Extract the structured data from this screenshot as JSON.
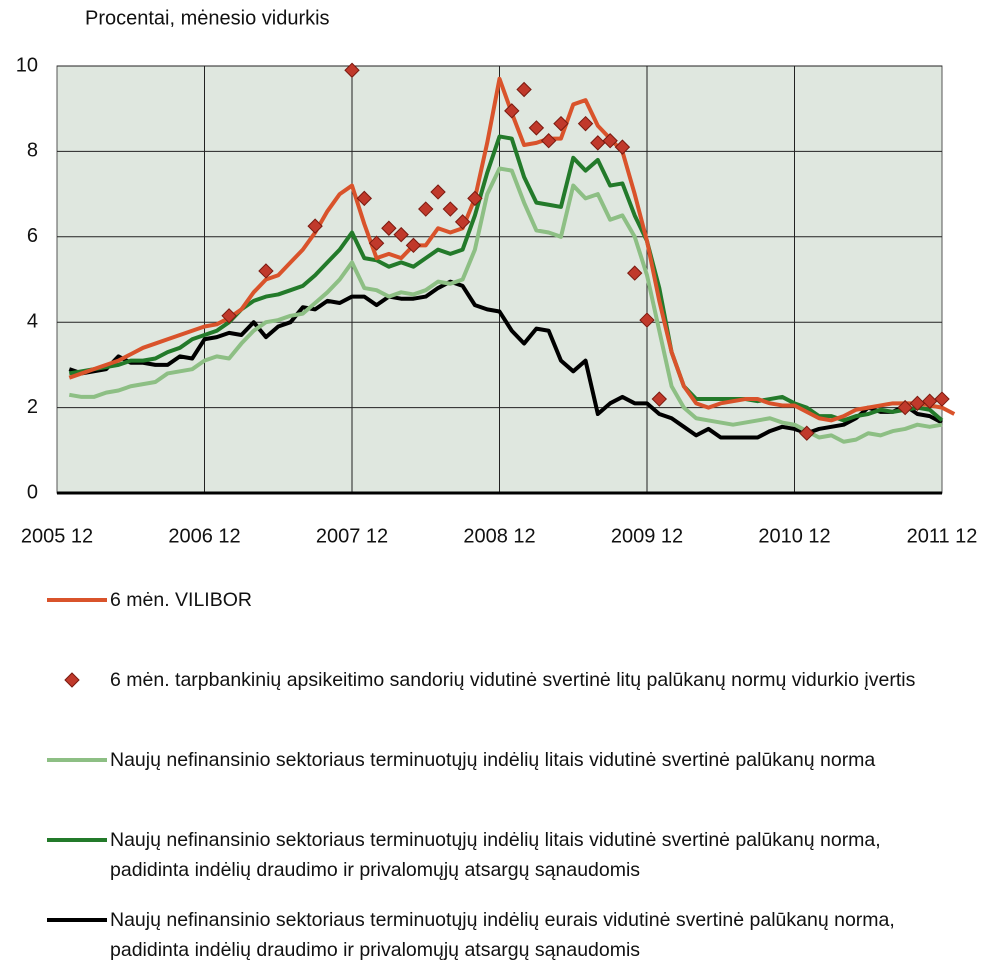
{
  "chart_data": {
    "type": "line",
    "title": "Procentai, mėnesio vidurkis",
    "categories": [
      "2005 12",
      null,
      null,
      null,
      null,
      null,
      null,
      null,
      null,
      null,
      null,
      null,
      "2006 12",
      null,
      null,
      null,
      null,
      null,
      null,
      null,
      null,
      null,
      null,
      null,
      "2007 12",
      null,
      null,
      null,
      null,
      null,
      null,
      null,
      null,
      null,
      null,
      null,
      "2008 12",
      null,
      null,
      null,
      null,
      null,
      null,
      null,
      null,
      null,
      null,
      null,
      "2009 12",
      null,
      null,
      null,
      null,
      null,
      null,
      null,
      null,
      null,
      null,
      null,
      "2010 12",
      null,
      null,
      null,
      null,
      null,
      null,
      null,
      null,
      null,
      null,
      null,
      "2011 12",
      null
    ],
    "ylim": [
      0,
      10
    ],
    "yticks": [
      0,
      2,
      4,
      6,
      8,
      10
    ],
    "grid": true,
    "series": [
      {
        "name": "6 mėn. VILIBOR",
        "color": "#d9532b",
        "style": "line",
        "values": [
          null,
          2.7,
          2.8,
          2.9,
          3.0,
          3.1,
          3.25,
          3.4,
          3.5,
          3.6,
          3.7,
          3.8,
          3.9,
          3.95,
          4.1,
          4.3,
          4.7,
          5.0,
          5.1,
          5.4,
          5.7,
          6.1,
          6.6,
          7.0,
          7.2,
          6.3,
          5.5,
          5.6,
          5.5,
          5.8,
          5.8,
          6.2,
          6.1,
          6.2,
          6.9,
          8.2,
          9.7,
          8.9,
          8.15,
          8.2,
          8.3,
          8.3,
          9.1,
          9.2,
          8.6,
          8.3,
          8.0,
          7.0,
          5.9,
          4.5,
          3.3,
          2.5,
          2.1,
          2.0,
          2.1,
          2.15,
          2.2,
          2.2,
          2.1,
          2.05,
          2.05,
          1.9,
          1.75,
          1.7,
          1.8,
          1.95,
          2.0,
          2.05,
          2.1,
          2.1,
          2.1,
          2.05,
          2.0,
          1.85
        ]
      },
      {
        "name": "6 mėn. tarpbankinių apsikeitimo sandorių vidutinė svertinė litų palūkanų normų vidurkio įvertis",
        "color": "#c0392b",
        "style": "markers",
        "values": [
          null,
          null,
          null,
          null,
          null,
          null,
          null,
          null,
          null,
          null,
          null,
          null,
          null,
          null,
          4.15,
          null,
          null,
          5.2,
          null,
          null,
          null,
          6.25,
          null,
          null,
          9.9,
          6.9,
          5.85,
          6.2,
          6.05,
          5.8,
          6.65,
          7.05,
          6.65,
          6.35,
          6.9,
          null,
          null,
          8.95,
          9.45,
          8.55,
          8.25,
          8.65,
          null,
          8.65,
          8.2,
          8.25,
          8.1,
          5.15,
          4.05,
          2.2,
          null,
          null,
          null,
          null,
          null,
          null,
          null,
          null,
          null,
          null,
          null,
          1.4,
          null,
          null,
          null,
          null,
          null,
          null,
          null,
          2.0,
          2.1,
          2.15,
          2.2,
          null
        ]
      },
      {
        "name": "Naujų nefinansinio sektoriaus terminuotųjų indėlių litais vidutinė svertinė palūkanų norma",
        "color": "#8dbf84",
        "style": "line",
        "values": [
          null,
          2.3,
          2.25,
          2.25,
          2.35,
          2.4,
          2.5,
          2.55,
          2.6,
          2.8,
          2.85,
          2.9,
          3.1,
          3.2,
          3.15,
          3.5,
          3.8,
          4.0,
          4.05,
          4.15,
          4.2,
          4.45,
          4.7,
          5.0,
          5.4,
          4.8,
          4.75,
          4.6,
          4.7,
          4.65,
          4.75,
          4.95,
          4.9,
          5.0,
          5.7,
          7.0,
          7.6,
          7.55,
          6.8,
          6.15,
          6.1,
          6.0,
          7.2,
          6.9,
          7.0,
          6.4,
          6.5,
          6.0,
          5.1,
          3.8,
          2.5,
          2.0,
          1.75,
          1.7,
          1.65,
          1.6,
          1.65,
          1.7,
          1.75,
          1.65,
          1.6,
          1.45,
          1.3,
          1.35,
          1.2,
          1.25,
          1.4,
          1.35,
          1.45,
          1.5,
          1.6,
          1.55,
          1.6,
          null
        ]
      },
      {
        "name": "Naujų nefinansinio sektoriaus terminuotųjų indėlių litais vidutinė svertinė palūkanų norma, padidinta indėlių draudimo ir privalomųjų atsargų sąnaudomis",
        "color": "#237a2a",
        "style": "line",
        "values": [
          null,
          2.8,
          2.85,
          2.9,
          2.95,
          3.0,
          3.1,
          3.1,
          3.15,
          3.3,
          3.4,
          3.6,
          3.7,
          3.8,
          4.0,
          4.3,
          4.5,
          4.6,
          4.65,
          4.75,
          4.85,
          5.1,
          5.4,
          5.7,
          6.1,
          5.5,
          5.45,
          5.3,
          5.4,
          5.3,
          5.5,
          5.7,
          5.6,
          5.7,
          6.5,
          7.5,
          8.35,
          8.3,
          7.4,
          6.8,
          6.75,
          6.7,
          7.85,
          7.55,
          7.8,
          7.2,
          7.25,
          6.5,
          5.9,
          4.8,
          3.3,
          2.5,
          2.2,
          2.2,
          2.2,
          2.2,
          2.2,
          2.15,
          2.2,
          2.25,
          2.1,
          2.0,
          1.8,
          1.8,
          1.7,
          1.8,
          1.85,
          1.95,
          1.9,
          1.95,
          2.0,
          1.95,
          1.7,
          null
        ]
      },
      {
        "name": "Naujų nefinansinio sektoriaus terminuotųjų indėlių eurais vidutinė svertinė palūkanų norma, padidinta indėlių draudimo ir privalomųjų atsargų sąnaudomis",
        "color": "#000000",
        "style": "line",
        "values": [
          null,
          2.9,
          2.8,
          2.85,
          2.9,
          3.2,
          3.05,
          3.05,
          3.0,
          3.0,
          3.2,
          3.15,
          3.6,
          3.65,
          3.75,
          3.7,
          4.0,
          3.65,
          3.9,
          4.0,
          4.35,
          4.3,
          4.5,
          4.45,
          4.6,
          4.6,
          4.4,
          4.6,
          4.55,
          4.55,
          4.6,
          4.8,
          4.95,
          4.85,
          4.4,
          4.3,
          4.25,
          3.8,
          3.5,
          3.85,
          3.8,
          3.1,
          2.85,
          3.1,
          1.85,
          2.1,
          2.25,
          2.1,
          2.1,
          1.85,
          1.75,
          1.55,
          1.35,
          1.5,
          1.3,
          1.3,
          1.3,
          1.3,
          1.45,
          1.55,
          1.5,
          1.4,
          1.5,
          1.55,
          1.6,
          1.75,
          2.0,
          1.9,
          1.9,
          2.05,
          1.85,
          1.8,
          1.65,
          null
        ]
      }
    ]
  }
}
